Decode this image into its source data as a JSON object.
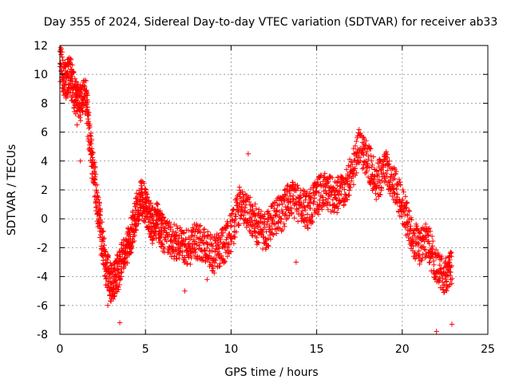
{
  "chart_data": {
    "type": "scatter",
    "title": "Day 355 of 2024, Sidereal Day-to-day VTEC variation (SDTVAR) for receiver ab33",
    "xlabel": "GPS time / hours",
    "ylabel": "SDTVAR / TECUs",
    "xlim": [
      0,
      25
    ],
    "ylim": [
      -8,
      12
    ],
    "xticks": [
      0,
      5,
      10,
      15,
      20,
      25
    ],
    "yticks": [
      -8,
      -6,
      -4,
      -2,
      0,
      2,
      4,
      6,
      8,
      10,
      12
    ],
    "grid": true,
    "marker": "+",
    "marker_color": "#ff0000",
    "series": [
      {
        "name": "SDTVAR",
        "approximate_trace": [
          [
            0.0,
            11.0
          ],
          [
            0.3,
            9.5
          ],
          [
            0.6,
            10.0
          ],
          [
            0.9,
            8.5
          ],
          [
            1.2,
            8.0
          ],
          [
            1.5,
            8.5
          ],
          [
            1.8,
            5.0
          ],
          [
            2.1,
            2.0
          ],
          [
            2.4,
            -1.0
          ],
          [
            2.7,
            -3.5
          ],
          [
            3.0,
            -4.5
          ],
          [
            3.3,
            -4.0
          ],
          [
            3.6,
            -3.0
          ],
          [
            3.9,
            -2.0
          ],
          [
            4.2,
            -1.0
          ],
          [
            4.5,
            0.5
          ],
          [
            4.8,
            1.5
          ],
          [
            5.1,
            0.5
          ],
          [
            5.4,
            -0.5
          ],
          [
            5.7,
            0.0
          ],
          [
            6.0,
            -1.0
          ],
          [
            6.5,
            -1.5
          ],
          [
            7.0,
            -1.5
          ],
          [
            7.5,
            -2.0
          ],
          [
            8.0,
            -1.5
          ],
          [
            8.5,
            -2.0
          ],
          [
            9.0,
            -2.5
          ],
          [
            9.5,
            -2.0
          ],
          [
            10.0,
            -1.0
          ],
          [
            10.5,
            1.0
          ],
          [
            11.0,
            0.5
          ],
          [
            11.5,
            -0.5
          ],
          [
            12.0,
            -1.0
          ],
          [
            12.5,
            0.0
          ],
          [
            13.0,
            0.5
          ],
          [
            13.5,
            1.5
          ],
          [
            14.0,
            1.0
          ],
          [
            14.5,
            0.5
          ],
          [
            15.0,
            1.5
          ],
          [
            15.5,
            2.0
          ],
          [
            16.0,
            1.5
          ],
          [
            16.5,
            2.0
          ],
          [
            17.0,
            3.0
          ],
          [
            17.5,
            5.0
          ],
          [
            18.0,
            4.0
          ],
          [
            18.5,
            2.5
          ],
          [
            19.0,
            3.5
          ],
          [
            19.5,
            2.5
          ],
          [
            20.0,
            1.0
          ],
          [
            20.5,
            -1.0
          ],
          [
            21.0,
            -2.0
          ],
          [
            21.5,
            -1.5
          ],
          [
            22.0,
            -3.5
          ],
          [
            22.5,
            -4.0
          ],
          [
            22.9,
            -3.5
          ]
        ]
      }
    ]
  }
}
